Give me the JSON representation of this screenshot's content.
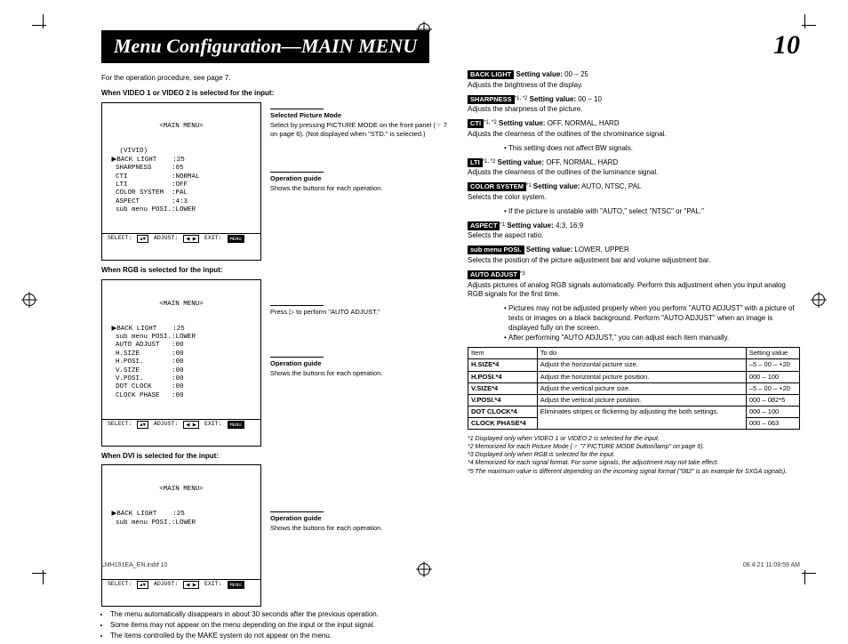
{
  "header": {
    "title": "Menu Configuration—MAIN MENU",
    "page_num": "10"
  },
  "leftIntro": "For the operation procedure, see page 7.",
  "sect1": {
    "heading": "When VIDEO 1 or VIDEO 2 is selected for the input:",
    "osd_title": "<MAIN MENU>",
    "osd_body": "   (VIVID)\n ▶BACK LIGHT    :25\n  SHARPNESS     :05\n  CTI           :NORMAL\n  LTI           :OFF\n  COLOR SYSTEM  :PAL\n  ASPECT        :4:3\n  sub menu POSI.:LOWER",
    "note_head": "Selected Picture Mode",
    "note_body": "Select by pressing PICTURE MODE on the front panel (☞ 7 on page 6). (Not displayed when \"STD.\" is selected.)",
    "op_head": "Operation guide",
    "op_body": "Shows the buttons for each operation."
  },
  "sect2": {
    "heading": "When RGB is selected for the input:",
    "osd_title": "<MAIN MENU>",
    "osd_body": " ▶BACK LIGHT    :25\n  sub menu POSI.:LOWER\n  AUTO ADJUST   :00\n  H.SIZE        :00\n  H.POSI.       :00\n  V.SIZE        :00\n  V.POSI.       :00\n  DOT CLOCK     :00\n  CLOCK PHASE   :00",
    "note_line": "Press ▷ to perform \"AUTO ADJUST.\"",
    "op_head": "Operation guide",
    "op_body": "Shows the buttons for each operation."
  },
  "sect3": {
    "heading": "When DVI is selected for the input:",
    "osd_title": "<MAIN MENU>",
    "osd_body": " ▶BACK LIGHT    :25\n  sub menu POSI.:LOWER\n\n\n\n\n",
    "op_head": "Operation guide",
    "op_body": "Shows the buttons for each operation."
  },
  "osd_footer": {
    "k1": "SELECT:",
    "b1": "▲▼",
    "k2": "ADJUST:",
    "b2": "◀ ▶",
    "k3": "EXIT:",
    "b3": "MENU"
  },
  "leftBullets": [
    "The menu automatically disappears in about 30 seconds after the previous operation.",
    "Some items may not appear on the menu depending on the input or the input signal.",
    "The items controlled by the MAKE system do not appear on the menu."
  ],
  "items": [
    {
      "tag": "BACK LIGHT",
      "sup": "",
      "sv": "Setting value:",
      "val": "00 – 25",
      "desc": "Adjusts the brightness of the display."
    },
    {
      "tag": "SHARPNESS",
      "sup": "*1, *2",
      "sv": "Setting value:",
      "val": "00 – 10",
      "desc": "Adjusts the sharpness of the picture."
    },
    {
      "tag": "CTI",
      "sup": "*1, *2",
      "sv": "Setting value:",
      "val": "OFF, NORMAL, HARD",
      "desc": "Adjusts the clearness of the outlines of the chrominance signal.",
      "sub": [
        "This setting does not affect BW signals."
      ]
    },
    {
      "tag": "LTI",
      "sup": "*1, *2",
      "sv": "Setting value:",
      "val": "OFF, NORMAL, HARD",
      "desc": "Adjusts the clearness of the outlines of the luminance signal."
    },
    {
      "tag": "COLOR SYSTEM",
      "sup": "*1",
      "sv": "Setting value:",
      "val": "AUTO, NTSC, PAL",
      "desc": "Selects the color system.",
      "sub": [
        "If the picture is unstable with \"AUTO,\" select \"NTSC\" or \"PAL.\""
      ]
    },
    {
      "tag": "ASPECT",
      "sup": "*1",
      "sv": "Setting value:",
      "val": "4:3, 16:9",
      "desc": "Selects the aspect ratio."
    },
    {
      "tag": "sub menu POSI.",
      "sup": "",
      "sv": "Setting value:",
      "val": "LOWER, UPPER",
      "desc": "Selects the position of the picture adjustment bar and volume adjustment bar."
    }
  ],
  "autoAdjust": {
    "tag": "AUTO ADJUST",
    "sup": "*3",
    "desc": "Adjusts pictures of analog RGB signals automatically. Perform this adjustment when you input analog RGB signals for the first time.",
    "sub": [
      "Pictures may not be adjusted properly when you perform \"AUTO ADJUST\" with a picture of texts or images on a black background. Perform \"AUTO ADJUST\" when an image is displayed fully on the screen.",
      "After performing \"AUTO ADJUST,\" you can adjust each item manually."
    ]
  },
  "table": {
    "head": [
      "Item",
      "To do",
      "Setting value"
    ],
    "rows": [
      [
        "H.SIZE*4",
        "Adjust the horizontal picture size.",
        "–5 – 00 – +20"
      ],
      [
        "H.POSI.*4",
        "Adjust the horizontal picture position.",
        "000 – 100"
      ],
      [
        "V.SIZE*4",
        "Adjust the vertical picture size.",
        "–5 – 00 – +20"
      ],
      [
        "V.POSI.*4",
        "Adjust the vertical picture position.",
        "000 – 082*5"
      ],
      [
        "DOT CLOCK*4",
        "Eliminates stripes or flickering by adjusting the both settings.",
        "000 – 100"
      ],
      [
        "CLOCK PHASE*4",
        "",
        "000 – 063"
      ]
    ]
  },
  "fnotes": [
    "*1 Displayed only when VIDEO 1 or VIDEO 2 is selected for the input.",
    "*2 Memorized for each Picture Mode (☞ \"7 PICTURE MODE button/lamp\" on page 6).",
    "*3 Displayed only when RGB is selected for the input.",
    "*4 Memorized for each signal format. For some signals, the adjustment may not take effect.",
    "*5 The maximum value is different depending on the incoming signal format (\"082\" is an example for SXGA signals)."
  ],
  "footer": {
    "left": "LMH191EA_EN.indd   10",
    "right": "08.4.21   11:09:59 AM"
  }
}
